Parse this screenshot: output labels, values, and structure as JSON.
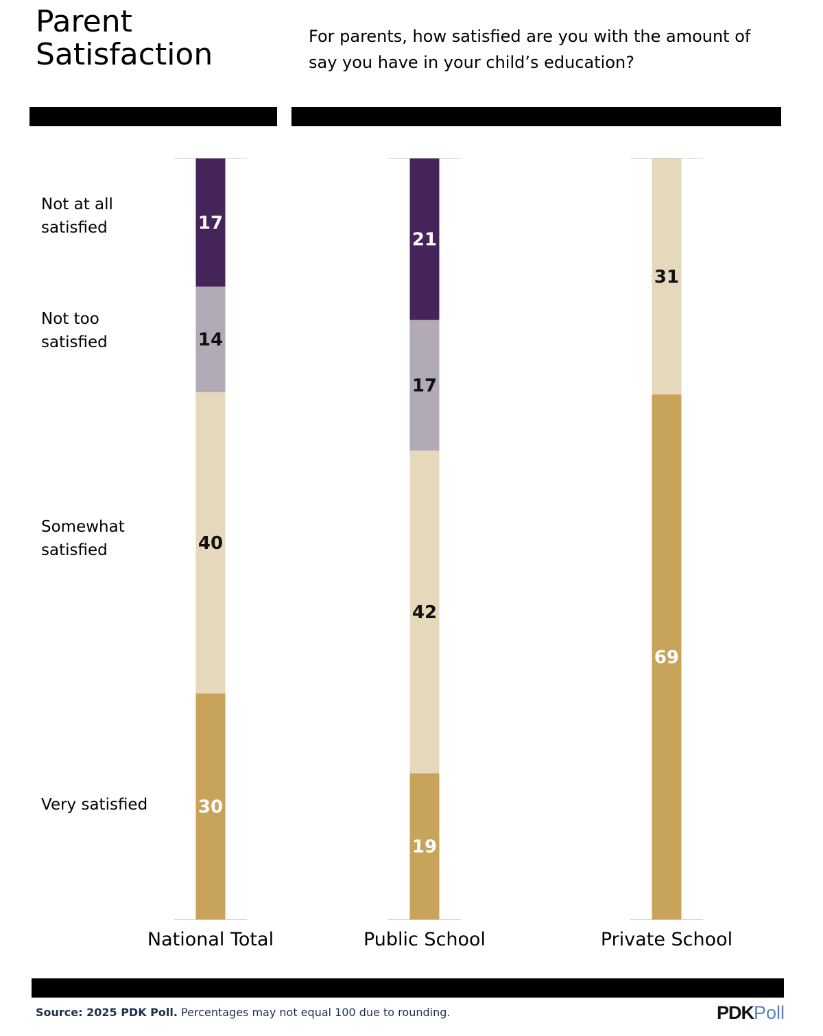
{
  "header": {
    "title": "Parent Satisfaction",
    "question": "For parents, how satisfied are you with the amount of say you have in your child’s education?"
  },
  "footer": {
    "source_bold": "Source: 2025 PDK Poll.",
    "source_rest": " Percentages may not equal 100 due to rounding.",
    "logo_bold": "PDK",
    "logo_light": "Poll"
  },
  "colors": {
    "not_at_all": "#45245a",
    "not_too": "#b3aab8",
    "somewhat": "#e6d8bb",
    "very": "#c7a45a"
  },
  "chart_data": {
    "type": "bar",
    "stacked": true,
    "categories": [
      "National Total",
      "Public School",
      "Private School"
    ],
    "series": [
      {
        "name": "Not at all satisfied",
        "values": [
          17,
          21,
          null
        ],
        "color": "#45245a",
        "label_color": "#ffffff"
      },
      {
        "name": "Not too satisfied",
        "values": [
          14,
          17,
          null
        ],
        "color": "#b3aab8",
        "label_color": "#111111"
      },
      {
        "name": "Somewhat satisfied",
        "values": [
          40,
          42,
          31
        ],
        "color": "#e6d8bb",
        "label_color": "#111111"
      },
      {
        "name": "Very satisfied",
        "values": [
          30,
          19,
          69
        ],
        "color": "#c7a45a",
        "label_color": "#ffffff"
      }
    ],
    "stack_order": "top-to-bottom",
    "legend_placement": "left",
    "grid": false
  }
}
